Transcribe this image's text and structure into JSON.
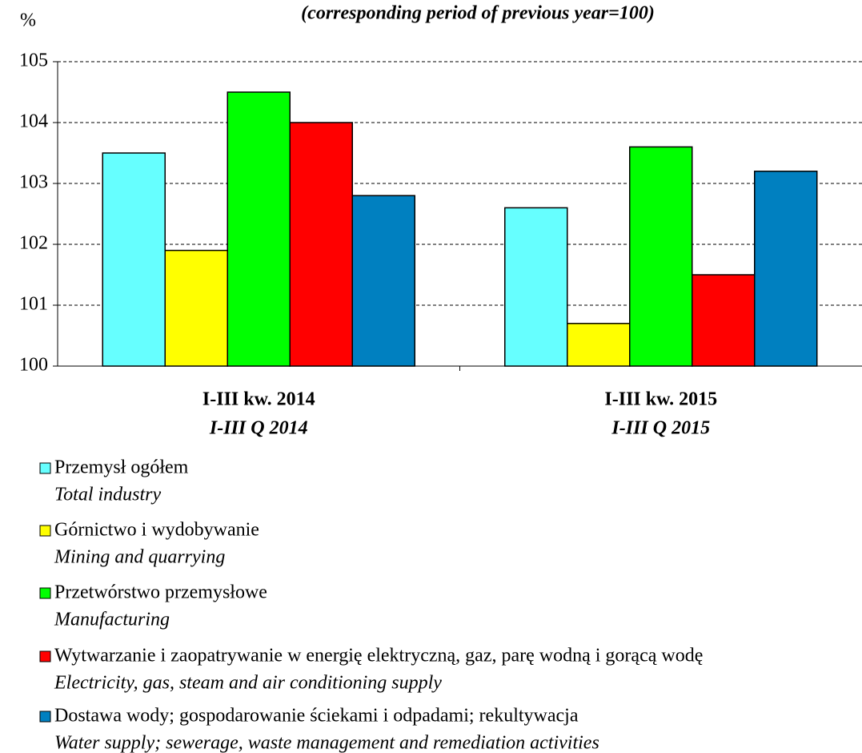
{
  "chart_data": {
    "type": "bar",
    "subtitle": "(corresponding period of previous year=100)",
    "y_unit": "%",
    "categories": [
      "I-III kw. 2014",
      "I-III kw. 2015"
    ],
    "categories_en": [
      "I-III Q 2014",
      "I-III Q 2015"
    ],
    "series": [
      {
        "name": "Przemysł ogółem",
        "name_en": "Total industry",
        "color": "#66ffff",
        "values": [
          103.5,
          102.6
        ]
      },
      {
        "name": "Górnictwo i wydobywanie",
        "name_en": "Mining and quarrying",
        "color": "#ffff00",
        "values": [
          101.9,
          100.7
        ]
      },
      {
        "name": "Przetwórstwo przemysłowe",
        "name_en": "Manufacturing",
        "color": "#00ff00",
        "values": [
          104.5,
          103.6
        ]
      },
      {
        "name": "Wytwarzanie i zaopatrywanie w energię elektryczną, gaz, parę wodną i gorącą wodę",
        "name_en": "Electricity, gas, steam and air conditioning supply",
        "color": "#ff0000",
        "values": [
          104.0,
          101.5
        ]
      },
      {
        "name": "Dostawa wody; gospodarowanie ściekami i odpadami; rekultywacja",
        "name_en": "Water supply; sewerage, waste management and remediation activities",
        "color": "#0080c0",
        "values": [
          102.8,
          103.2
        ]
      }
    ],
    "ylim": [
      100,
      105
    ],
    "yticks": [
      100,
      101,
      102,
      103,
      104,
      105
    ],
    "grid": true
  }
}
